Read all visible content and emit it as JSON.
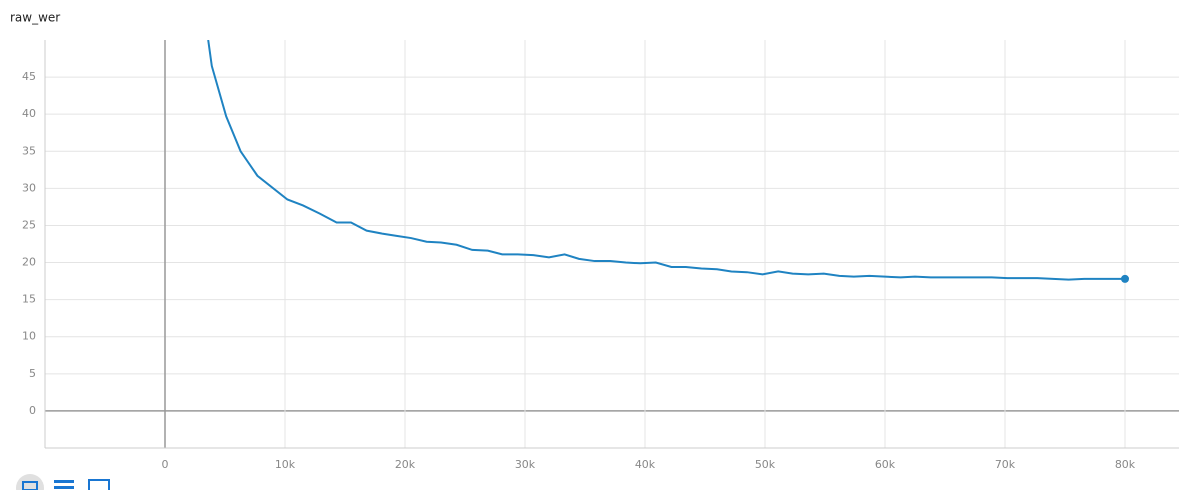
{
  "chart_data": {
    "type": "line",
    "title": "raw_wer",
    "x": [
      3600,
      3900,
      5100,
      6300,
      7700,
      10200,
      11500,
      12900,
      14300,
      15500,
      16800,
      18100,
      19300,
      20500,
      21800,
      23000,
      24300,
      25600,
      26900,
      28100,
      29400,
      30700,
      32000,
      33300,
      34500,
      35800,
      37100,
      38400,
      39600,
      40900,
      42200,
      43400,
      44700,
      46000,
      47200,
      48500,
      49800,
      51100,
      52300,
      53600,
      54900,
      56200,
      57400,
      58700,
      60000,
      61300,
      62500,
      63800,
      65100,
      66400,
      67600,
      68900,
      70200,
      71500,
      72700,
      74000,
      75300,
      76600,
      77800,
      79100,
      80000
    ],
    "values": [
      50,
      46.5,
      39.7,
      35.0,
      31.7,
      28.5,
      27.7,
      26.6,
      25.4,
      25.4,
      24.3,
      23.9,
      23.6,
      23.3,
      22.8,
      22.7,
      22.4,
      21.7,
      21.6,
      21.1,
      21.1,
      21.0,
      20.7,
      21.1,
      20.5,
      20.2,
      20.2,
      20.0,
      19.9,
      20.0,
      19.4,
      19.4,
      19.2,
      19.1,
      18.8,
      18.7,
      18.4,
      18.8,
      18.5,
      18.4,
      18.5,
      18.2,
      18.1,
      18.2,
      18.1,
      18.0,
      18.1,
      18.0,
      18.0,
      18.0,
      18.0,
      18.0,
      17.9,
      17.9,
      17.9,
      17.8,
      17.7,
      17.8,
      17.8,
      17.8,
      17.8
    ],
    "color": "#1f83c2",
    "xlim": [
      -10000,
      84500
    ],
    "ylim": [
      -5,
      50
    ],
    "xticks": [
      0,
      {
        "value": 10000,
        "label": "10k"
      },
      {
        "value": 20000,
        "label": "20k"
      },
      {
        "value": 30000,
        "label": "30k"
      },
      {
        "value": 40000,
        "label": "40k"
      },
      {
        "value": 50000,
        "label": "50k"
      },
      {
        "value": 60000,
        "label": "60k"
      },
      {
        "value": 70000,
        "label": "70k"
      },
      {
        "value": 80000,
        "label": "80k"
      }
    ],
    "yticks": [
      0,
      5,
      10,
      15,
      20,
      25,
      30,
      35,
      40,
      45
    ],
    "grid": true
  }
}
